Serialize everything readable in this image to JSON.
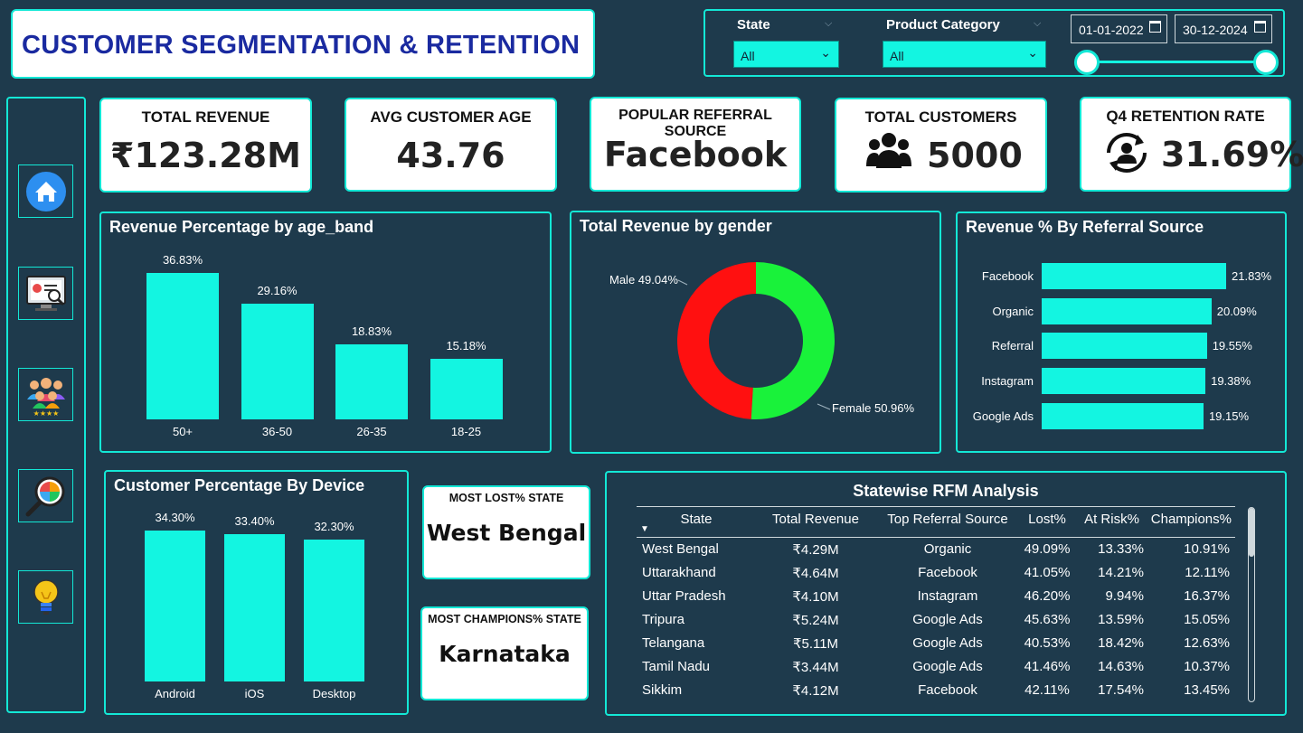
{
  "header": {
    "title": "CUSTOMER SEGMENTATION & RETENTION"
  },
  "filters": {
    "state": {
      "label": "State",
      "value": "All"
    },
    "category": {
      "label": "Product Category",
      "value": "All"
    },
    "date_from": "01-01-2022",
    "date_to": "30-12-2024",
    "date_range": [
      0,
      1
    ]
  },
  "nav": [
    {
      "icon": "home-icon"
    },
    {
      "icon": "dashboard-monitor-icon"
    },
    {
      "icon": "customers-group-icon"
    },
    {
      "icon": "analysis-magnifier-icon"
    },
    {
      "icon": "lightbulb-icon"
    }
  ],
  "kpis": {
    "revenue": {
      "title": "TOTAL REVENUE",
      "value": "₹123.28M"
    },
    "age": {
      "title": "AVG CUSTOMER AGE",
      "value": "43.76"
    },
    "referral": {
      "title": "POPULAR REFERRAL SOURCE",
      "value": "Facebook"
    },
    "customers": {
      "title": "TOTAL CUSTOMERS",
      "value": "5000",
      "icon": "users-icon"
    },
    "retention": {
      "title": "Q4 RETENTION RATE",
      "value": "31.69%",
      "icon": "retention-user-icon"
    }
  },
  "chart_data": [
    {
      "type": "bar",
      "title": "Revenue Percentage by age_band",
      "categories": [
        "50+",
        "36-50",
        "26-35",
        "18-25"
      ],
      "values": [
        36.83,
        29.16,
        18.83,
        15.18
      ],
      "labels": [
        "36.83%",
        "29.16%",
        "18.83%",
        "15.18%"
      ],
      "color": "#13f5e1"
    },
    {
      "type": "pie",
      "title": "Total Revenue by gender",
      "categories": [
        "Male",
        "Female"
      ],
      "values": [
        49.04,
        50.96
      ],
      "labels": [
        "Male 49.04%",
        "Female 50.96%"
      ],
      "colors": [
        "#ff1010",
        "#19f23a"
      ]
    },
    {
      "type": "bar",
      "orientation": "horizontal",
      "title": "Revenue % By Referral Source",
      "categories": [
        "Facebook",
        "Organic",
        "Referral",
        "Instagram",
        "Google Ads"
      ],
      "values": [
        21.83,
        20.09,
        19.55,
        19.38,
        19.15
      ],
      "labels": [
        "21.83%",
        "20.09%",
        "19.55%",
        "19.38%",
        "19.15%"
      ],
      "color": "#13f5e1"
    },
    {
      "type": "bar",
      "title": "Customer Percentage By Device",
      "categories": [
        "Android",
        "iOS",
        "Desktop"
      ],
      "values": [
        34.3,
        33.4,
        32.3
      ],
      "labels": [
        "34.30%",
        "33.40%",
        "32.30%"
      ],
      "color": "#13f5e1"
    },
    {
      "type": "table",
      "title": "Statewise RFM Analysis",
      "columns": [
        "State",
        "Total Revenue",
        "Top Referral Source",
        "Lost%",
        "At Risk%",
        "Champions%"
      ],
      "rows": [
        [
          "West Bengal",
          "₹4.29M",
          "Organic",
          "49.09%",
          "13.33%",
          "10.91%"
        ],
        [
          "Uttarakhand",
          "₹4.64M",
          "Facebook",
          "41.05%",
          "14.21%",
          "12.11%"
        ],
        [
          "Uttar Pradesh",
          "₹4.10M",
          "Instagram",
          "46.20%",
          "9.94%",
          "16.37%"
        ],
        [
          "Tripura",
          "₹5.24M",
          "Google Ads",
          "45.63%",
          "13.59%",
          "15.05%"
        ],
        [
          "Telangana",
          "₹5.11M",
          "Google Ads",
          "40.53%",
          "18.42%",
          "12.63%"
        ],
        [
          "Tamil Nadu",
          "₹3.44M",
          "Google Ads",
          "41.46%",
          "14.63%",
          "10.37%"
        ],
        [
          "Sikkim",
          "₹4.12M",
          "Facebook",
          "42.11%",
          "17.54%",
          "13.45%"
        ]
      ]
    }
  ],
  "highlights": {
    "lost": {
      "title": "MOST LOST% STATE",
      "value": "West Bengal"
    },
    "champions": {
      "title": "MOST CHAMPIONS% STATE",
      "value": "Karnataka"
    }
  }
}
